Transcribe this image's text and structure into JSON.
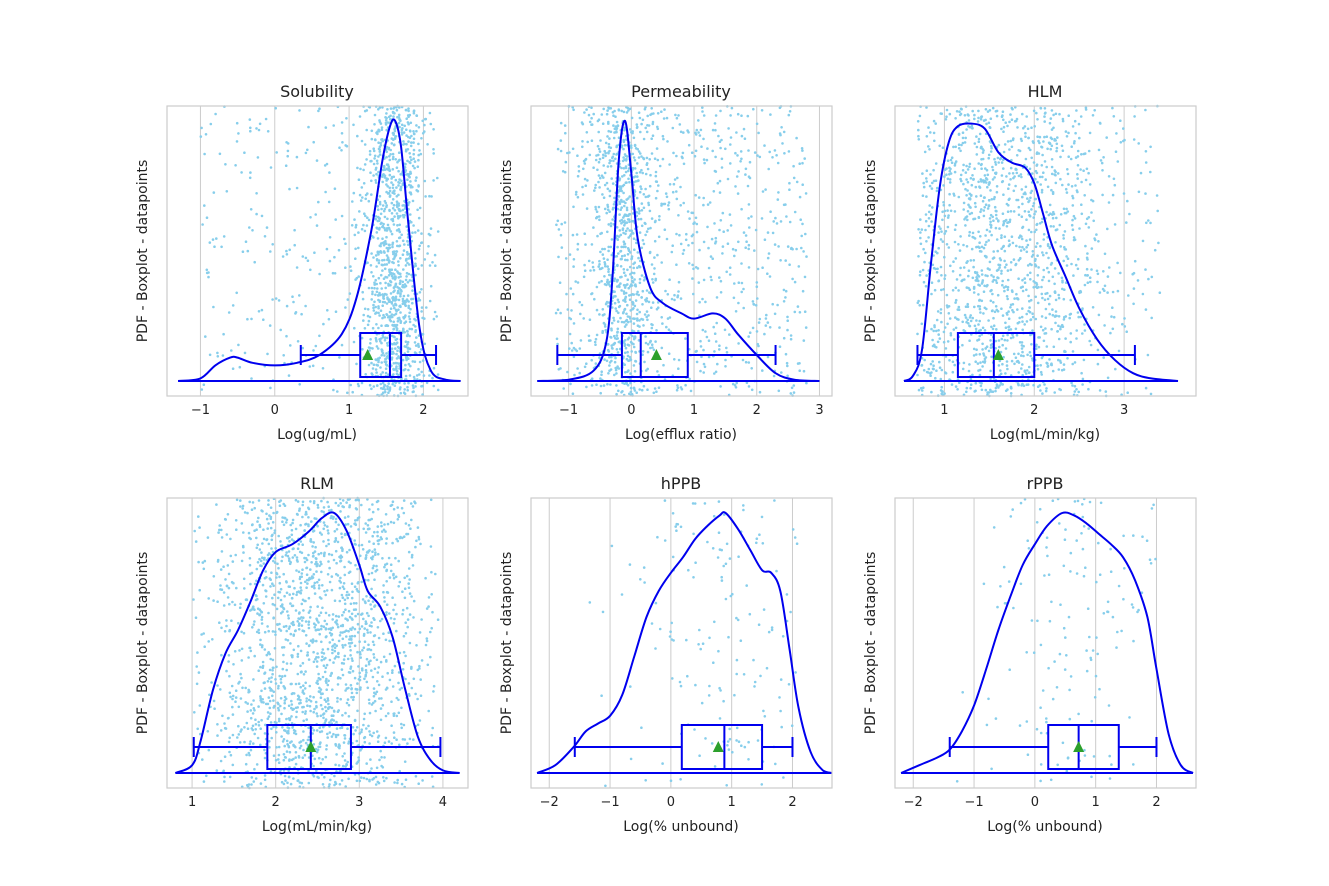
{
  "colors": {
    "scatter": "#87ceeb",
    "line": "#0000ee",
    "mean": "#2ca02c",
    "grid": "#cccccc",
    "frame": "#cccccc",
    "background": "#ffffff"
  },
  "chart_data": [
    {
      "type": "violin-box-scatter",
      "title": "Solubility",
      "xlabel": "Log(ug/mL)",
      "ylabel": "PDF - Boxplot - datapoints",
      "xlim": [
        -1.45,
        2.6
      ],
      "xticks": [
        -1,
        0,
        1,
        2
      ],
      "tick_labels": [
        "−1",
        "0",
        "1",
        "2"
      ],
      "grid": true,
      "scatter": {
        "count": 1400,
        "min": -1.0,
        "max": 2.2,
        "mode": 1.6,
        "spread": 0.2,
        "tail_weight": 0.22
      },
      "box": {
        "whisker_low": 0.35,
        "q1": 1.15,
        "median": 1.55,
        "q3": 1.7,
        "whisker_high": 2.17,
        "mean": 1.25
      },
      "density": {
        "x": [
          -1.3,
          -1.0,
          -0.8,
          -0.6,
          -0.5,
          -0.3,
          0.0,
          0.3,
          0.6,
          0.9,
          1.1,
          1.3,
          1.45,
          1.55,
          1.62,
          1.7,
          1.8,
          1.95,
          2.1,
          2.3,
          2.5
        ],
        "y": [
          0,
          0.01,
          0.06,
          0.09,
          0.09,
          0.07,
          0.06,
          0.07,
          0.1,
          0.18,
          0.32,
          0.58,
          0.85,
          0.98,
          1.0,
          0.9,
          0.6,
          0.2,
          0.04,
          0.005,
          0
        ]
      }
    },
    {
      "type": "violin-box-scatter",
      "title": "Permeability",
      "xlabel": "Log(efflux ratio)",
      "ylabel": "PDF - Boxplot - datapoints",
      "xlim": [
        -1.6,
        3.2
      ],
      "xticks": [
        -1,
        0,
        1,
        2,
        3
      ],
      "tick_labels": [
        "−1",
        "0",
        "1",
        "2",
        "3"
      ],
      "grid": true,
      "scatter": {
        "count": 1500,
        "min": -1.2,
        "max": 2.8,
        "mode": -0.1,
        "spread": 0.25,
        "tail_weight": 0.5
      },
      "box": {
        "whisker_low": -1.18,
        "q1": -0.15,
        "median": 0.15,
        "q3": 0.9,
        "whisker_high": 2.3,
        "mean": 0.4
      },
      "density": {
        "x": [
          -1.5,
          -1.0,
          -0.6,
          -0.4,
          -0.3,
          -0.2,
          -0.1,
          0.0,
          0.1,
          0.3,
          0.5,
          0.8,
          1.0,
          1.3,
          1.5,
          1.7,
          2.0,
          2.3,
          2.6,
          3.0
        ],
        "y": [
          0,
          0.005,
          0.04,
          0.15,
          0.4,
          0.85,
          1.0,
          0.8,
          0.55,
          0.36,
          0.3,
          0.26,
          0.24,
          0.26,
          0.24,
          0.18,
          0.1,
          0.03,
          0.005,
          0
        ]
      }
    },
    {
      "type": "violin-box-scatter",
      "title": "HLM",
      "xlabel": "Log(mL/min/kg)",
      "ylabel": "PDF - Boxplot - datapoints",
      "xlim": [
        0.45,
        3.8
      ],
      "xticks": [
        1,
        2,
        3
      ],
      "tick_labels": [
        "1",
        "2",
        "3"
      ],
      "grid": true,
      "scatter": {
        "count": 1600,
        "min": 0.7,
        "max": 3.4,
        "mode": 1.6,
        "spread": 0.6,
        "tail_weight": 0.05
      },
      "box": {
        "whisker_low": 0.7,
        "q1": 1.15,
        "median": 1.55,
        "q3": 2.0,
        "whisker_high": 3.12,
        "mean": 1.6
      },
      "density": {
        "x": [
          0.55,
          0.65,
          0.75,
          0.85,
          0.95,
          1.05,
          1.15,
          1.3,
          1.45,
          1.6,
          1.75,
          1.9,
          2.0,
          2.1,
          2.2,
          2.35,
          2.5,
          2.7,
          2.9,
          3.1,
          3.3,
          3.6
        ],
        "y": [
          0,
          0.02,
          0.12,
          0.45,
          0.75,
          0.92,
          0.98,
          0.99,
          0.97,
          0.88,
          0.84,
          0.82,
          0.76,
          0.64,
          0.52,
          0.4,
          0.28,
          0.16,
          0.08,
          0.03,
          0.01,
          0
        ]
      }
    },
    {
      "type": "violin-box-scatter",
      "title": "RLM",
      "xlabel": "Log(mL/min/kg)",
      "ylabel": "PDF - Boxplot - datapoints",
      "xlim": [
        0.7,
        4.3
      ],
      "xticks": [
        1,
        2,
        3,
        4
      ],
      "tick_labels": [
        "1",
        "2",
        "3",
        "4"
      ],
      "grid": true,
      "scatter": {
        "count": 1900,
        "min": 1.0,
        "max": 3.95,
        "mode": 2.5,
        "spread": 0.65,
        "tail_weight": 0.05
      },
      "box": {
        "whisker_low": 1.02,
        "q1": 1.9,
        "median": 2.42,
        "q3": 2.9,
        "whisker_high": 3.97,
        "mean": 2.42
      },
      "density": {
        "x": [
          0.8,
          1.0,
          1.1,
          1.25,
          1.4,
          1.55,
          1.7,
          1.85,
          2.0,
          2.2,
          2.4,
          2.55,
          2.7,
          2.85,
          3.0,
          3.1,
          3.25,
          3.4,
          3.55,
          3.7,
          3.85,
          4.0,
          4.2
        ],
        "y": [
          0,
          0.03,
          0.12,
          0.32,
          0.46,
          0.55,
          0.66,
          0.78,
          0.85,
          0.88,
          0.93,
          0.98,
          1.0,
          0.93,
          0.8,
          0.7,
          0.64,
          0.52,
          0.32,
          0.14,
          0.05,
          0.01,
          0
        ]
      }
    },
    {
      "type": "violin-box-scatter",
      "title": "hPPB",
      "xlabel": "Log(% unbound)",
      "ylabel": "PDF - Boxplot - datapoints",
      "xlim": [
        -2.3,
        2.65
      ],
      "xticks": [
        -2,
        -1,
        0,
        1,
        2
      ],
      "tick_labels": [
        "−2",
        "−1",
        "0",
        "1",
        "2"
      ],
      "grid": true,
      "scatter": {
        "count": 160,
        "min": -1.6,
        "max": 2.1,
        "mode": 0.9,
        "spread": 0.75,
        "tail_weight": 0.1
      },
      "box": {
        "whisker_low": -1.58,
        "q1": 0.18,
        "median": 0.88,
        "q3": 1.5,
        "whisker_high": 2.0,
        "mean": 0.78
      },
      "density": {
        "x": [
          -2.2,
          -1.9,
          -1.6,
          -1.4,
          -1.2,
          -1.0,
          -0.8,
          -0.6,
          -0.4,
          -0.2,
          0.0,
          0.2,
          0.4,
          0.6,
          0.8,
          0.9,
          1.1,
          1.3,
          1.5,
          1.65,
          1.8,
          1.95,
          2.1,
          2.3,
          2.5,
          2.65
        ],
        "y": [
          0,
          0.03,
          0.1,
          0.16,
          0.19,
          0.22,
          0.3,
          0.45,
          0.6,
          0.7,
          0.77,
          0.83,
          0.9,
          0.95,
          0.99,
          1.0,
          0.94,
          0.86,
          0.78,
          0.77,
          0.7,
          0.48,
          0.25,
          0.08,
          0.01,
          0
        ]
      }
    },
    {
      "type": "violin-box-scatter",
      "title": "rPPB",
      "xlabel": "Log(% unbound)",
      "ylabel": "PDF - Boxplot - datapoints",
      "xlim": [
        -2.3,
        2.65
      ],
      "xticks": [
        -2,
        -1,
        0,
        1,
        2
      ],
      "tick_labels": [
        "−2",
        "−1",
        "0",
        "1",
        "2"
      ],
      "grid": true,
      "scatter": {
        "count": 150,
        "min": -1.4,
        "max": 2.0,
        "mode": 0.7,
        "spread": 0.7,
        "tail_weight": 0.1
      },
      "box": {
        "whisker_low": -1.4,
        "q1": 0.22,
        "median": 0.72,
        "q3": 1.38,
        "whisker_high": 2.0,
        "mean": 0.72
      },
      "density": {
        "x": [
          -2.2,
          -1.9,
          -1.6,
          -1.4,
          -1.2,
          -1.0,
          -0.8,
          -0.6,
          -0.4,
          -0.2,
          0.0,
          0.2,
          0.45,
          0.65,
          0.85,
          1.05,
          1.25,
          1.45,
          1.65,
          1.85,
          2.0,
          2.2,
          2.4,
          2.6
        ],
        "y": [
          0,
          0.03,
          0.06,
          0.09,
          0.16,
          0.26,
          0.4,
          0.55,
          0.68,
          0.8,
          0.88,
          0.95,
          1.0,
          0.99,
          0.96,
          0.92,
          0.88,
          0.83,
          0.74,
          0.6,
          0.4,
          0.15,
          0.03,
          0
        ]
      }
    }
  ]
}
